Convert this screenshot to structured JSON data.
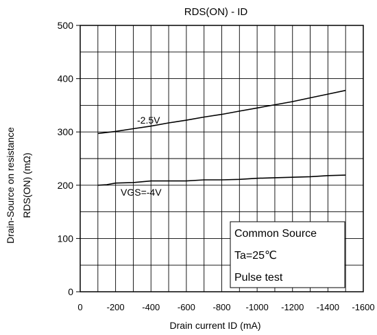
{
  "chart_data": {
    "type": "line",
    "title": "RDS(ON) - ID",
    "xlabel": "Drain current  ID (mA)",
    "ylabel_lines": [
      "Drain-Source on resistance",
      "RDS(ON) (mΩ)"
    ],
    "xlim": [
      0,
      -1600
    ],
    "ylim": [
      0,
      500
    ],
    "x_ticks": [
      0,
      -200,
      -400,
      -600,
      -800,
      -1000,
      -1200,
      -1400,
      -1600
    ],
    "x_tick_labels": [
      "0",
      "-200",
      "-400",
      "-600",
      "-800",
      "-1000",
      "-1200",
      "-1400",
      "-1600"
    ],
    "y_ticks": [
      0,
      100,
      200,
      300,
      400,
      500
    ],
    "y_tick_labels": [
      "0",
      "100",
      "200",
      "300",
      "400",
      "500"
    ],
    "grid": true,
    "series": [
      {
        "name": "-2.5V",
        "x": [
          -100,
          -200,
          -300,
          -400,
          -500,
          -600,
          -700,
          -800,
          -900,
          -1000,
          -1100,
          -1200,
          -1300,
          -1400,
          -1500
        ],
        "y": [
          297,
          301,
          306,
          311,
          317,
          322,
          328,
          333,
          339,
          345,
          351,
          357,
          364,
          371,
          378
        ]
      },
      {
        "name": "VGS=-4V",
        "x": [
          -100,
          -150,
          -200,
          -300,
          -400,
          -500,
          -600,
          -700,
          -800,
          -900,
          -1000,
          -1100,
          -1200,
          -1300,
          -1400,
          -1500
        ],
        "y": [
          200,
          201,
          204,
          205,
          208,
          208,
          208,
          210,
          210,
          211,
          213,
          214,
          215,
          216,
          218,
          219
        ]
      }
    ],
    "annotations": [
      "Common Source",
      "Ta=25℃",
      "Pulse test"
    ]
  }
}
